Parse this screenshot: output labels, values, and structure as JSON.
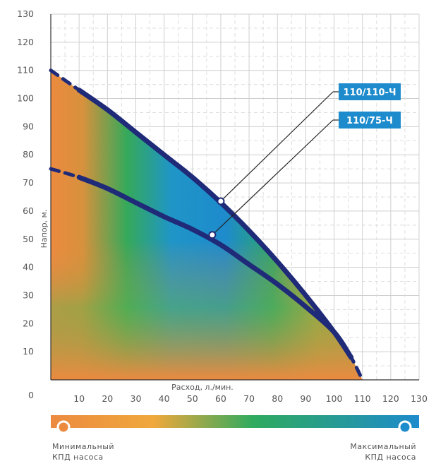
{
  "chart_data": {
    "type": "line",
    "title": "",
    "xlabel": "Расход, л./мин.",
    "ylabel": "Напор, м.",
    "xlim": [
      0,
      130
    ],
    "ylim": [
      0,
      130
    ],
    "x_ticks": [
      "10",
      "20",
      "30",
      "40",
      "50",
      "60",
      "70",
      "80",
      "90",
      "100",
      "110",
      "120",
      "130"
    ],
    "y_ticks": [
      "0",
      "10",
      "20",
      "30",
      "40",
      "50",
      "60",
      "70",
      "80",
      "90",
      "100",
      "110",
      "120",
      "130"
    ],
    "grid": true,
    "series": [
      {
        "name": "110/110-Ч",
        "color": "#1f2a78",
        "x": [
          0,
          10,
          20,
          30,
          40,
          50,
          60,
          70,
          80,
          90,
          100,
          106,
          110
        ],
        "y": [
          110,
          103,
          96,
          88,
          80,
          72,
          63,
          53,
          42,
          30,
          17,
          8,
          0
        ],
        "marker": {
          "x": 60,
          "y": 63.5
        }
      },
      {
        "name": "110/75-Ч",
        "color": "#1f2a78",
        "x": [
          0,
          10,
          20,
          30,
          40,
          50,
          60,
          70,
          80,
          90,
          100,
          106
        ],
        "y": [
          75,
          72,
          68,
          63,
          58,
          53.5,
          48,
          41,
          34,
          26,
          17,
          8
        ]
      }
    ],
    "efficiency_scale": {
      "min_label_line1": "Минимальный",
      "min_label_line2": "КПД насоса",
      "max_label_line1": "Максимальный",
      "max_label_line2": "КПД насоса",
      "colors": [
        "#ec8a40",
        "#f0a83c",
        "#2faa5e",
        "#1e8bcc"
      ]
    }
  }
}
